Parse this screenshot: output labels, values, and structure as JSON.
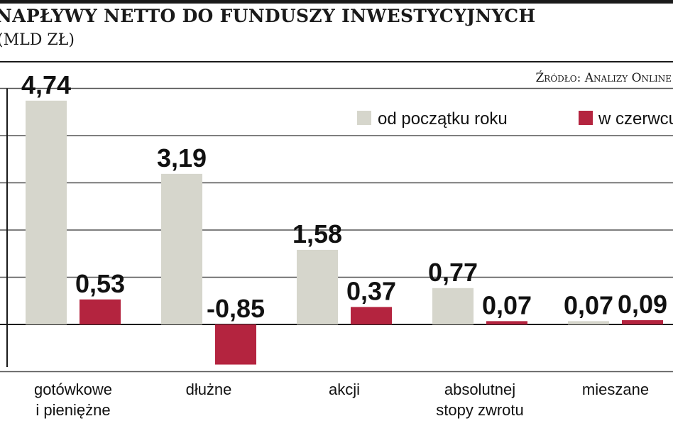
{
  "header": {
    "title": "NAPŁYWY NETTO DO FUNDUSZY INWESTYCYJNYCH",
    "unit": "(MLD ZŁ)",
    "source": "Źródło: Analizy Online"
  },
  "chart_data": {
    "type": "bar",
    "title": "NAPŁYWY NETTO DO FUNDUSZY INWESTYCYJNYCH",
    "subtitle": "(MLD ZŁ)",
    "categories": [
      [
        "gotówkowe",
        "i pieniężne"
      ],
      [
        "dłużne"
      ],
      [
        "akcji"
      ],
      [
        "absolutnej",
        "stopy zwrotu"
      ],
      [
        "mieszane"
      ]
    ],
    "series": [
      {
        "name": "od początku roku",
        "values": [
          4.74,
          3.19,
          1.58,
          0.77,
          0.07
        ],
        "labels": [
          "4,74",
          "3,19",
          "1,58",
          "0,77",
          "0,07"
        ],
        "color": "#d6d6cc"
      },
      {
        "name": "w czerwcu",
        "values": [
          0.53,
          -0.85,
          0.37,
          0.07,
          0.09
        ],
        "labels": [
          "0,53",
          "-0,85",
          "0,37",
          "0,07",
          "0,09"
        ],
        "color": "#b4243f"
      }
    ],
    "ylim": [
      -1,
      5
    ],
    "grid": true,
    "legend": "top-right",
    "source": "Źródło: Analizy Online"
  }
}
